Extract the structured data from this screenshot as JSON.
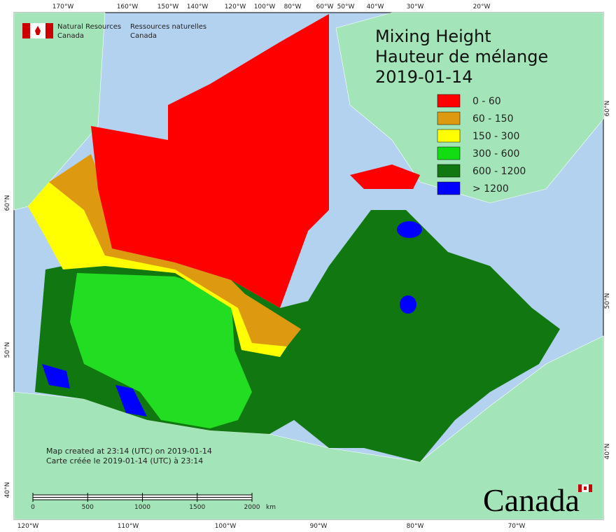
{
  "header": {
    "org_en": [
      "Natural Resources",
      "Canada"
    ],
    "org_fr": [
      "Ressources naturelles",
      "Canada"
    ]
  },
  "title": [
    "Mixing Height",
    "Hauteur de mélange",
    "2019-01-14"
  ],
  "legend": [
    {
      "label": "0 - 60",
      "color": "#ff0000"
    },
    {
      "label": "60 - 150",
      "color": "#dd9a11"
    },
    {
      "label": "150 - 300",
      "color": "#ffff00"
    },
    {
      "label": "300 - 600",
      "color": "#11dd11"
    },
    {
      "label": "600 - 1200",
      "color": "#117711"
    },
    {
      "label": "> 1200",
      "color": "#0000ff"
    }
  ],
  "top_labels": [
    "170°W",
    "160°W",
    "150°W",
    "140°W",
    "120°W",
    "100°W",
    "80°W",
    "60°W",
    "50°W",
    "40°W",
    "30°W",
    "20°W"
  ],
  "bottom_labels": [
    "120°W",
    "110°W",
    "100°W",
    "90°W",
    "80°W",
    "70°W"
  ],
  "left_labels": [
    "60°N",
    "50°N",
    "40°N"
  ],
  "right_labels": [
    "60°N",
    "50°N",
    "40°N"
  ],
  "scale": {
    "ticks": [
      "0",
      "500",
      "1000",
      "1500",
      "2000"
    ],
    "unit": "km"
  },
  "notes": [
    "Map created at 23:14 (UTC) on 2019-01-14",
    "Carte créée le 2019-01-14 (UTC) à 23:14"
  ],
  "wordmark": "Canada"
}
